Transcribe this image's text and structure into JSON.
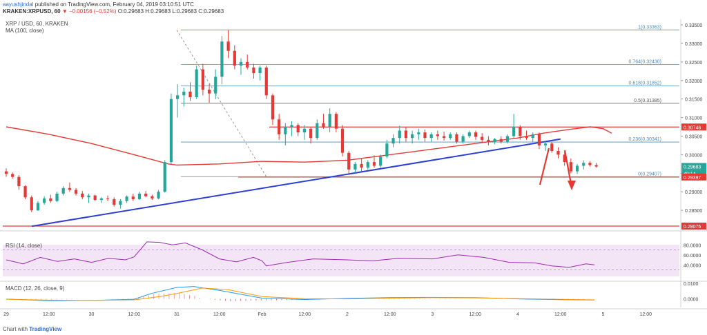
{
  "header": {
    "author": "aayushjindal",
    "published": "published on TradingView.com, February 04, 2019 03:10:51 UTC",
    "symbol_line": "KRAKEN:XRPUSD, 60",
    "change": "▼ −0.00156 (−0.52%)",
    "ohlc": "O:0.29683 H:0.29683 L:0.29683 C:0.29683"
  },
  "main_pane": {
    "title": "XRP / USD, 60, KRAKEN",
    "indicator": "MA (100, close)",
    "price_ticks": [
      "0.33500",
      "0.33000",
      "0.32500",
      "0.32000",
      "0.31500",
      "0.31000",
      "0.30500",
      "0.30000",
      "0.29500",
      "0.29000",
      "0.28500"
    ],
    "price_badges": [
      {
        "text": "0.30746",
        "color": "#e53935"
      },
      {
        "text": "0.29683",
        "color": "#26a69a"
      },
      {
        "text": "49:14",
        "color": "#26a69a"
      },
      {
        "text": "0.29397",
        "color": "#e53935"
      },
      {
        "text": "0.28075",
        "color": "#e53935"
      }
    ],
    "fib_labels": [
      "1(0.33363)",
      "0.764(0.32430)",
      "0.618(0.31852)",
      "0.5(0.31385)",
      "0.236(0.30341)",
      "0(0.29407)"
    ]
  },
  "rsi_pane": {
    "title": "RSI (14, close)",
    "ticks": [
      "80.0000",
      "60.0000",
      "40.0000"
    ]
  },
  "macd_pane": {
    "title": "MACD (12, 26, close, 9)",
    "ticks": [
      "0.0100",
      "0.0000"
    ]
  },
  "time_axis": [
    "29",
    "12:00",
    "30",
    "12:00",
    "31",
    "12:00",
    "Feb",
    "12:00",
    "2",
    "12:00",
    "3",
    "12:00",
    "4",
    "12:00",
    "5",
    "12:00"
  ],
  "footer": {
    "prefix": "Chart with ",
    "brand": "TradingView"
  },
  "colors": {
    "up": "#26a69a",
    "down": "#e53935",
    "ma": "#e53935",
    "trend": "#2b3fd3",
    "fib": "#4a8ab0",
    "rsi": "#9c27b0",
    "macd": "#2196f3",
    "signal": "#ff9800"
  },
  "chart_data": {
    "type": "line",
    "title": "XRP / USD, 60, KRAKEN",
    "xlabel": "",
    "ylabel": "",
    "ylim": [
      0.28,
      0.3365
    ],
    "x_tick_labels": [
      "29",
      "12:00",
      "30",
      "12:00",
      "31",
      "12:00",
      "Feb",
      "12:00",
      "2",
      "12:00",
      "3",
      "12:00",
      "4",
      "12:00",
      "5",
      "12:00"
    ],
    "candles": [
      [
        0.2955,
        0.2963,
        0.294,
        0.2948
      ],
      [
        0.2948,
        0.2952,
        0.2935,
        0.294
      ],
      [
        0.294,
        0.2945,
        0.2905,
        0.2915
      ],
      [
        0.2915,
        0.2918,
        0.288,
        0.2885
      ],
      [
        0.2885,
        0.289,
        0.2845,
        0.285
      ],
      [
        0.285,
        0.2875,
        0.2848,
        0.287
      ],
      [
        0.287,
        0.2888,
        0.2865,
        0.2882
      ],
      [
        0.2882,
        0.2892,
        0.287,
        0.2875
      ],
      [
        0.2875,
        0.29,
        0.2872,
        0.2895
      ],
      [
        0.2895,
        0.2915,
        0.289,
        0.291
      ],
      [
        0.291,
        0.2925,
        0.29,
        0.2905
      ],
      [
        0.2905,
        0.291,
        0.289,
        0.2895
      ],
      [
        0.2895,
        0.2902,
        0.288,
        0.2885
      ],
      [
        0.2885,
        0.2895,
        0.287,
        0.289
      ],
      [
        0.289,
        0.2892,
        0.2875,
        0.2878
      ],
      [
        0.2878,
        0.2885,
        0.287,
        0.2882
      ],
      [
        0.2882,
        0.289,
        0.2875,
        0.288
      ],
      [
        0.288,
        0.2885,
        0.286,
        0.2865
      ],
      [
        0.2865,
        0.288,
        0.2855,
        0.2875
      ],
      [
        0.2875,
        0.289,
        0.287,
        0.2887
      ],
      [
        0.2887,
        0.2895,
        0.2875,
        0.288
      ],
      [
        0.288,
        0.29,
        0.2878,
        0.2895
      ],
      [
        0.2895,
        0.2902,
        0.2885,
        0.2888
      ],
      [
        0.2888,
        0.2892,
        0.2878,
        0.2882
      ],
      [
        0.2882,
        0.2905,
        0.288,
        0.29
      ],
      [
        0.29,
        0.2985,
        0.2898,
        0.298
      ],
      [
        0.298,
        0.3165,
        0.2975,
        0.315
      ],
      [
        0.315,
        0.319,
        0.31,
        0.316
      ],
      [
        0.316,
        0.318,
        0.313,
        0.317
      ],
      [
        0.317,
        0.3195,
        0.3145,
        0.3155
      ],
      [
        0.3155,
        0.324,
        0.315,
        0.323
      ],
      [
        0.323,
        0.3245,
        0.316,
        0.3175
      ],
      [
        0.3175,
        0.319,
        0.314,
        0.3165
      ],
      [
        0.3165,
        0.323,
        0.315,
        0.321
      ],
      [
        0.321,
        0.332,
        0.319,
        0.3305
      ],
      [
        0.3305,
        0.3336,
        0.326,
        0.328
      ],
      [
        0.328,
        0.3295,
        0.323,
        0.324
      ],
      [
        0.324,
        0.326,
        0.3215,
        0.325
      ],
      [
        0.325,
        0.327,
        0.323,
        0.3235
      ],
      [
        0.3235,
        0.3245,
        0.3205,
        0.322
      ],
      [
        0.322,
        0.324,
        0.32,
        0.3235
      ],
      [
        0.3235,
        0.324,
        0.315,
        0.316
      ],
      [
        0.316,
        0.3165,
        0.308,
        0.3095
      ],
      [
        0.3095,
        0.311,
        0.304,
        0.3055
      ],
      [
        0.3055,
        0.3085,
        0.3025,
        0.3075
      ],
      [
        0.3075,
        0.309,
        0.305,
        0.308
      ],
      [
        0.308,
        0.3085,
        0.305,
        0.306
      ],
      [
        0.306,
        0.308,
        0.304,
        0.307
      ],
      [
        0.307,
        0.3075,
        0.303,
        0.3045
      ],
      [
        0.3045,
        0.3095,
        0.304,
        0.3085
      ],
      [
        0.3085,
        0.311,
        0.307,
        0.3075
      ],
      [
        0.3075,
        0.3125,
        0.306,
        0.311
      ],
      [
        0.311,
        0.3115,
        0.306,
        0.307
      ],
      [
        0.307,
        0.308,
        0.2995,
        0.3005
      ],
      [
        0.3005,
        0.301,
        0.2945,
        0.296
      ],
      [
        0.296,
        0.298,
        0.295,
        0.2975
      ],
      [
        0.2975,
        0.299,
        0.2955,
        0.2965
      ],
      [
        0.2965,
        0.2985,
        0.296,
        0.298
      ],
      [
        0.298,
        0.2998,
        0.2965,
        0.297
      ],
      [
        0.297,
        0.3,
        0.2965,
        0.2995
      ],
      [
        0.2995,
        0.304,
        0.299,
        0.303
      ],
      [
        0.303,
        0.3055,
        0.302,
        0.3045
      ],
      [
        0.3045,
        0.3078,
        0.303,
        0.3065
      ],
      [
        0.3065,
        0.3075,
        0.3035,
        0.3045
      ],
      [
        0.3045,
        0.3065,
        0.303,
        0.3055
      ],
      [
        0.3055,
        0.307,
        0.304,
        0.306
      ],
      [
        0.306,
        0.3068,
        0.3035,
        0.3045
      ],
      [
        0.3045,
        0.306,
        0.3035,
        0.3055
      ],
      [
        0.3055,
        0.3065,
        0.304,
        0.305
      ],
      [
        0.305,
        0.3062,
        0.3038,
        0.3045
      ],
      [
        0.3045,
        0.306,
        0.304,
        0.3055
      ],
      [
        0.3055,
        0.306,
        0.303,
        0.3035
      ],
      [
        0.3035,
        0.3055,
        0.303,
        0.305
      ],
      [
        0.305,
        0.3065,
        0.3045,
        0.306
      ],
      [
        0.306,
        0.3065,
        0.304,
        0.3048
      ],
      [
        0.3048,
        0.3058,
        0.3035,
        0.304
      ],
      [
        0.304,
        0.305,
        0.3025,
        0.3035
      ],
      [
        0.3035,
        0.3045,
        0.3028,
        0.3042
      ],
      [
        0.3042,
        0.305,
        0.303,
        0.3035
      ],
      [
        0.3035,
        0.3055,
        0.303,
        0.305
      ],
      [
        0.305,
        0.311,
        0.3045,
        0.3075
      ],
      [
        0.3075,
        0.308,
        0.304,
        0.305
      ],
      [
        0.305,
        0.3065,
        0.304,
        0.3045
      ],
      [
        0.3045,
        0.306,
        0.3035,
        0.3055
      ],
      [
        0.3055,
        0.306,
        0.3015,
        0.3025
      ],
      [
        0.3025,
        0.3035,
        0.301,
        0.303
      ],
      [
        0.303,
        0.3035,
        0.3005,
        0.301
      ],
      [
        0.301,
        0.302,
        0.299,
        0.3
      ],
      [
        0.3,
        0.3008,
        0.297,
        0.298
      ],
      [
        0.298,
        0.299,
        0.295,
        0.2955
      ],
      [
        0.2955,
        0.2975,
        0.2948,
        0.297
      ],
      [
        0.297,
        0.2985,
        0.296,
        0.2978
      ],
      [
        0.2978,
        0.2982,
        0.2968,
        0.2972
      ],
      [
        0.2972,
        0.2978,
        0.2965,
        0.2968
      ]
    ],
    "ma100": [
      [
        29.0,
        0.3075
      ],
      [
        29.5,
        0.3055
      ],
      [
        30.0,
        0.303
      ],
      [
        30.5,
        0.3
      ],
      [
        30.9,
        0.2975
      ],
      [
        31.0,
        0.2972
      ],
      [
        31.5,
        0.2975
      ],
      [
        32.0,
        0.2982
      ],
      [
        32.5,
        0.298
      ],
      [
        33.0,
        0.2985
      ],
      [
        33.5,
        0.3
      ],
      [
        34.0,
        0.3015
      ],
      [
        34.5,
        0.303
      ],
      [
        35.0,
        0.3045
      ],
      [
        35.3,
        0.3058
      ],
      [
        35.6,
        0.3068
      ],
      [
        35.85,
        0.3075
      ],
      [
        36.0,
        0.307
      ],
      [
        36.1,
        0.3058
      ]
    ],
    "rsi": [
      [
        29.0,
        50
      ],
      [
        29.2,
        42
      ],
      [
        29.4,
        55
      ],
      [
        29.6,
        47
      ],
      [
        29.8,
        52
      ],
      [
        30.0,
        45
      ],
      [
        30.2,
        53
      ],
      [
        30.4,
        50
      ],
      [
        30.5,
        56
      ],
      [
        30.65,
        86
      ],
      [
        30.8,
        85
      ],
      [
        30.95,
        80
      ],
      [
        31.1,
        84
      ],
      [
        31.3,
        70
      ],
      [
        31.5,
        52
      ],
      [
        31.7,
        46
      ],
      [
        31.9,
        55
      ],
      [
        32.0,
        48
      ],
      [
        32.05,
        38
      ],
      [
        32.3,
        45
      ],
      [
        32.6,
        52
      ],
      [
        33.0,
        50
      ],
      [
        33.3,
        48
      ],
      [
        33.6,
        53
      ],
      [
        34.0,
        52
      ],
      [
        34.3,
        60
      ],
      [
        34.6,
        55
      ],
      [
        34.9,
        45
      ],
      [
        35.2,
        44
      ],
      [
        35.4,
        38
      ],
      [
        35.6,
        35
      ],
      [
        35.8,
        42
      ],
      [
        35.9,
        40
      ]
    ],
    "macd": [
      [
        29.0,
        -0.0001
      ],
      [
        29.5,
        -0.0012
      ],
      [
        30.0,
        -0.001
      ],
      [
        30.5,
        -0.0002
      ],
      [
        30.7,
        0.0035
      ],
      [
        31.0,
        0.0074
      ],
      [
        31.2,
        0.008
      ],
      [
        31.5,
        0.0055
      ],
      [
        32.0,
        0.0005
      ],
      [
        32.5,
        -0.0004
      ],
      [
        33.0,
        0.0003
      ],
      [
        33.5,
        0.0008
      ],
      [
        34.0,
        0.001
      ],
      [
        34.5,
        0.0008
      ],
      [
        35.0,
        0.0
      ],
      [
        35.5,
        -0.0005
      ],
      [
        35.9,
        -0.0007
      ]
    ],
    "signal": [
      [
        29.0,
        -0.0002
      ],
      [
        29.5,
        -0.0008
      ],
      [
        30.0,
        -0.001
      ],
      [
        30.5,
        -0.0006
      ],
      [
        30.8,
        0.0015
      ],
      [
        31.0,
        0.0035
      ],
      [
        31.3,
        0.007
      ],
      [
        31.6,
        0.006
      ],
      [
        32.0,
        0.0015
      ],
      [
        32.5,
        0.0002
      ],
      [
        33.0,
        0.0
      ],
      [
        33.5,
        0.0005
      ],
      [
        34.0,
        0.0008
      ],
      [
        34.5,
        0.0007
      ],
      [
        35.0,
        0.0002
      ],
      [
        35.5,
        -0.0003
      ],
      [
        35.9,
        -0.0006
      ]
    ],
    "annotations": {
      "resistance": 0.30746,
      "support": 0.29397,
      "low": 0.28075,
      "trendline": [
        [
          29.3,
          0.2807
        ],
        [
          35.5,
          0.3042
        ]
      ],
      "fib_swing": [
        [
          31.0,
          0.33363
        ],
        [
          32.05,
          0.29407
        ]
      ]
    }
  }
}
